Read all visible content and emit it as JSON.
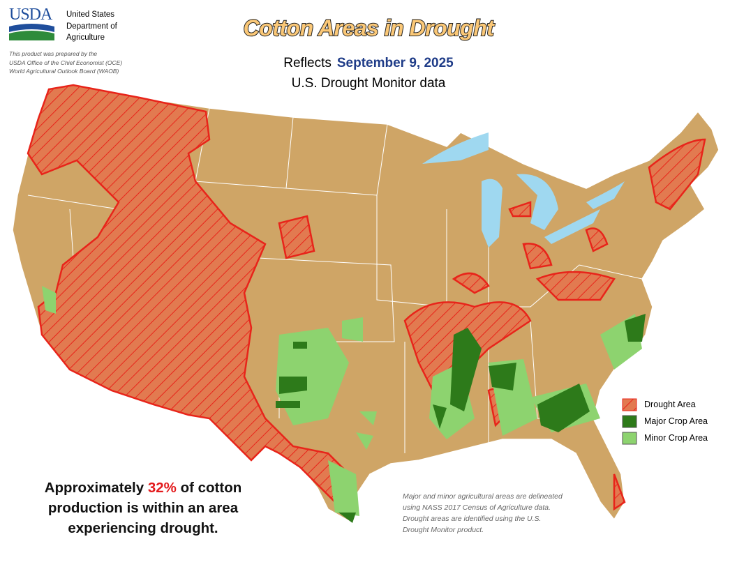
{
  "header": {
    "logo": "USDA",
    "agency": [
      "United States",
      "Department of",
      "Agriculture"
    ],
    "note": [
      "This product was prepared by the",
      "USDA Office of the Chief Economist (OCE)",
      "World Agricultural Outlook Board (WAOB)"
    ]
  },
  "title": "Cotton Areas in Drought",
  "subtitle": {
    "reflects": "Reflects",
    "date": "September 9, 2025",
    "source": "U.S. Drought Monitor data"
  },
  "legend": [
    "Drought Area",
    "Major Crop Area",
    "Minor Crop Area"
  ],
  "summary": {
    "before": "Approximately",
    "percent": "32%",
    "after": "of cotton production is within an area experiencing drought."
  },
  "footnote": "Major and minor agricultural areas are delineated using NASS 2017 Census of Agriculture data.  Drought areas are identified using the U.S. Drought Monitor product."
}
